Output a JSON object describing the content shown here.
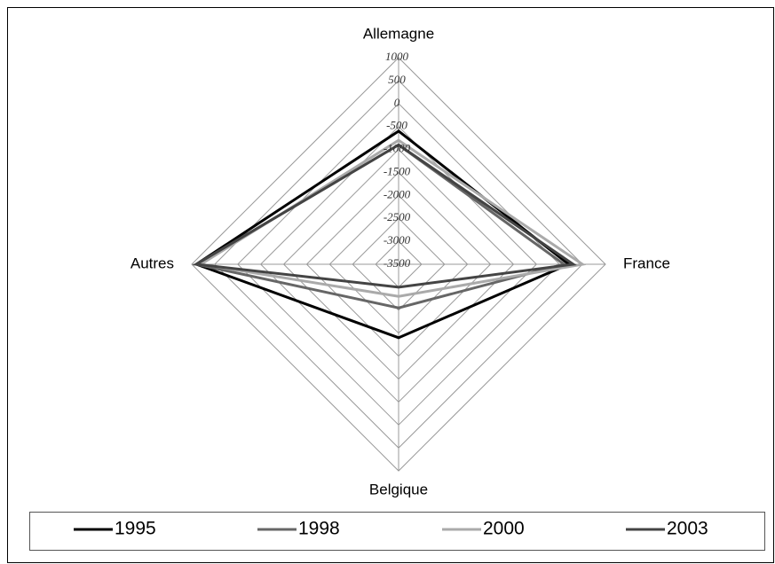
{
  "chart_data": {
    "type": "radar",
    "categories": [
      "Allemagne",
      "France",
      "Belgique",
      "Autres"
    ],
    "series": [
      {
        "name": "1995",
        "color": "#000000",
        "values": [
          -600,
          200,
          -1900,
          900
        ]
      },
      {
        "name": "1998",
        "color": "#666666",
        "values": [
          -900,
          100,
          -2550,
          900
        ]
      },
      {
        "name": "2000",
        "color": "#aaaaaa",
        "values": [
          -800,
          500,
          -2800,
          800
        ]
      },
      {
        "name": "2003",
        "color": "#444444",
        "values": [
          -900,
          300,
          -3000,
          900
        ]
      }
    ],
    "ylim": [
      -3500,
      1000
    ],
    "yticks": [
      1000,
      500,
      0,
      -500,
      -1000,
      -1500,
      -2000,
      -2500,
      -3000,
      -3500
    ],
    "grid": true,
    "legend": "bottom"
  }
}
